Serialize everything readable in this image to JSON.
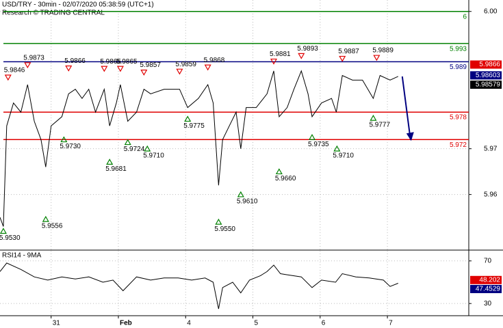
{
  "chart_data": [
    {
      "type": "line",
      "title": "USD/TRY - 30min - 02/07/2020 05:38:59 (UTC+1)",
      "subtitle": "Research © TRADING CENTRAL",
      "x": [
        0.24,
        0.29,
        0.34,
        0.44,
        0.55,
        0.65,
        0.75,
        0.85,
        0.92,
        1.0,
        1.16,
        1.26,
        1.36,
        1.46,
        1.56,
        1.66,
        1.79,
        1.87,
        1.97,
        2.03,
        2.14,
        2.27,
        2.38,
        2.48,
        2.68,
        2.91,
        3.03,
        3.19,
        3.33,
        3.41,
        3.49,
        3.55,
        3.65,
        3.75,
        3.82,
        3.9,
        4.05,
        4.21,
        4.31,
        4.39,
        4.51,
        4.61,
        4.72,
        4.82,
        4.88,
        5.02,
        5.17,
        5.24,
        5.33,
        5.48,
        5.63,
        5.79,
        5.89,
        6.04,
        6.16
      ],
      "series": [
        {
          "color": "#000000",
          "values": [
            5.955,
            5.953,
            5.975,
            5.98,
            5.978,
            5.984,
            5.976,
            5.972,
            5.966,
            5.975,
            5.977,
            5.982,
            5.983,
            5.981,
            5.983,
            5.978,
            5.983,
            5.975,
            5.98,
            5.984,
            5.976,
            5.978,
            5.983,
            5.982,
            5.983,
            5.983,
            5.979,
            5.981,
            5.984,
            5.98,
            5.962,
            5.972,
            5.975,
            5.978,
            5.97,
            5.979,
            5.979,
            5.982,
            5.987,
            5.977,
            5.979,
            5.983,
            5.987,
            5.982,
            5.977,
            5.98,
            5.981,
            5.978,
            5.986,
            5.985,
            5.985,
            5.981,
            5.986,
            5.985,
            5.9858
          ]
        }
      ],
      "xlim": [
        0.24,
        7.21
      ],
      "xticks": [
        {
          "value": 1,
          "label": "31"
        },
        {
          "value": 2,
          "label": "Feb"
        },
        {
          "value": 3,
          "label": "4"
        },
        {
          "value": 4,
          "label": "5"
        },
        {
          "value": 5,
          "label": "6"
        },
        {
          "value": 6,
          "label": "7"
        }
      ],
      "ylim": [
        5.948,
        6.0025
      ],
      "yticks": [
        5.96,
        5.97,
        {
          "value": 6,
          "label": "6.00"
        }
      ],
      "grid": true,
      "levels": [
        {
          "value": 6,
          "color": "#008000"
        },
        {
          "value": 5.993,
          "color": "#008000"
        },
        {
          "value": 5.989,
          "color": "#000080"
        },
        {
          "value": 5.978,
          "color": "#e00000"
        },
        {
          "value": 5.972,
          "color": "#e00000"
        }
      ],
      "pivots_high": {
        "color": "#e00000",
        "x": [
          0.36,
          0.65,
          1.26,
          1.79,
          2.03,
          2.38,
          2.91,
          3.33,
          4.31,
          4.72,
          5.33,
          5.84
        ],
        "values": [
          5.9846,
          5.9873,
          5.9866,
          5.9865,
          5.9865,
          5.9857,
          5.9859,
          5.9868,
          5.9881,
          5.9893,
          5.9887,
          5.9889
        ],
        "value_labels": [
          "5.9846",
          "5.9873",
          "5.9866",
          "5.9865",
          "5.9865",
          "5.9857",
          "5.9859",
          "5.9868",
          "5.9881",
          "5.9893",
          "5.9887",
          "5.9889"
        ]
      },
      "pivots_low": {
        "color": "#008000",
        "x": [
          0.29,
          0.92,
          1.19,
          1.87,
          2.14,
          2.43,
          3.03,
          3.49,
          3.82,
          4.39,
          4.88,
          5.25,
          5.79
        ],
        "values": [
          5.953,
          5.9556,
          5.973,
          5.9681,
          5.9724,
          5.971,
          5.9775,
          5.955,
          5.961,
          5.966,
          5.9735,
          5.971,
          5.9777
        ],
        "value_labels": [
          "5.9530",
          "5.9556",
          "5.9730",
          "5.9681",
          "5.9724",
          "5.9710",
          "5.9775",
          "5.9550",
          "5.9610",
          "5.9660",
          "5.9735",
          "5.9710",
          "5.9777"
        ]
      },
      "last_values": [
        {
          "value": 5.9866,
          "color": "#e00000"
        },
        {
          "value": 5.98603,
          "color": "#000080"
        },
        {
          "value": 5.98579,
          "color": "#000000"
        }
      ]
    },
    {
      "type": "line",
      "title": "RSI14 - 9MA",
      "x": [
        0.24,
        0.34,
        0.55,
        0.75,
        0.95,
        1.16,
        1.36,
        1.56,
        1.77,
        1.92,
        2.07,
        2.27,
        2.48,
        2.68,
        2.89,
        3.09,
        3.29,
        3.41,
        3.49,
        3.55,
        3.7,
        3.82,
        3.95,
        4.11,
        4.21,
        4.31,
        4.41,
        4.51,
        4.72,
        4.88,
        5.02,
        5.23,
        5.33,
        5.53,
        5.73,
        5.94,
        6.04,
        6.16
      ],
      "series": [
        {
          "color": "#000000",
          "values": [
            60,
            68,
            62,
            55,
            52,
            55,
            53,
            55,
            50,
            52,
            42,
            55,
            52,
            54,
            54,
            52,
            54,
            50,
            25,
            45,
            50,
            40,
            52,
            56,
            60,
            66,
            58,
            57,
            55,
            45,
            52,
            50,
            58,
            55,
            54,
            52,
            46,
            49
          ]
        }
      ],
      "ylim": [
        19.2,
        79.5
      ],
      "yticks": [
        30,
        70
      ],
      "last_values": [
        {
          "value": 48.202,
          "color": "#e00000"
        },
        {
          "value": 47.4529,
          "color": "#000080"
        }
      ]
    }
  ]
}
